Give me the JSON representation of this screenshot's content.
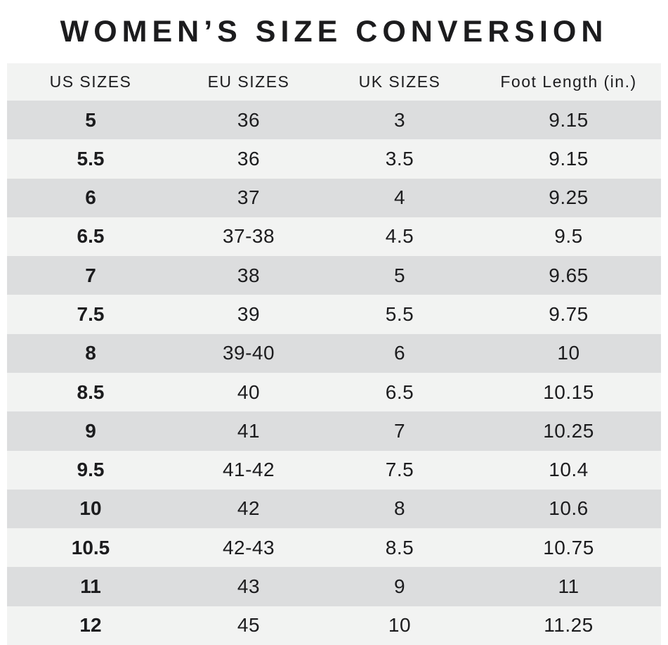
{
  "title": "WOMEN’S SIZE CONVERSION",
  "chart_data": {
    "type": "table",
    "title": "WOMEN’S SIZE CONVERSION",
    "columns": [
      "US SIZES",
      "EU SIZES",
      "UK SIZES",
      "Foot Length (in.)"
    ],
    "rows": [
      [
        "5",
        "36",
        "3",
        "9.15"
      ],
      [
        "5.5",
        "36",
        "3.5",
        "9.15"
      ],
      [
        "6",
        "37",
        "4",
        "9.25"
      ],
      [
        "6.5",
        "37-38",
        "4.5",
        "9.5"
      ],
      [
        "7",
        "38",
        "5",
        "9.65"
      ],
      [
        "7.5",
        "39",
        "5.5",
        "9.75"
      ],
      [
        "8",
        "39-40",
        "6",
        "10"
      ],
      [
        "8.5",
        "40",
        "6.5",
        "10.15"
      ],
      [
        "9",
        "41",
        "7",
        "10.25"
      ],
      [
        "9.5",
        "41-42",
        "7.5",
        "10.4"
      ],
      [
        "10",
        "42",
        "8",
        "10.6"
      ],
      [
        "10.5",
        "42-43",
        "8.5",
        "10.75"
      ],
      [
        "11",
        "43",
        "9",
        "11"
      ],
      [
        "12",
        "45",
        "10",
        "11.25"
      ]
    ],
    "layout": {
      "stripe_pattern": "first data row dark, alternating",
      "us_sizes_column_bold": true,
      "grid": false
    }
  },
  "colors": {
    "background": "#ffffff",
    "row_dark": "#dcddde",
    "row_light": "#f2f3f2",
    "header_bg": "#f2f3f2",
    "text": "#1c1c1e"
  }
}
